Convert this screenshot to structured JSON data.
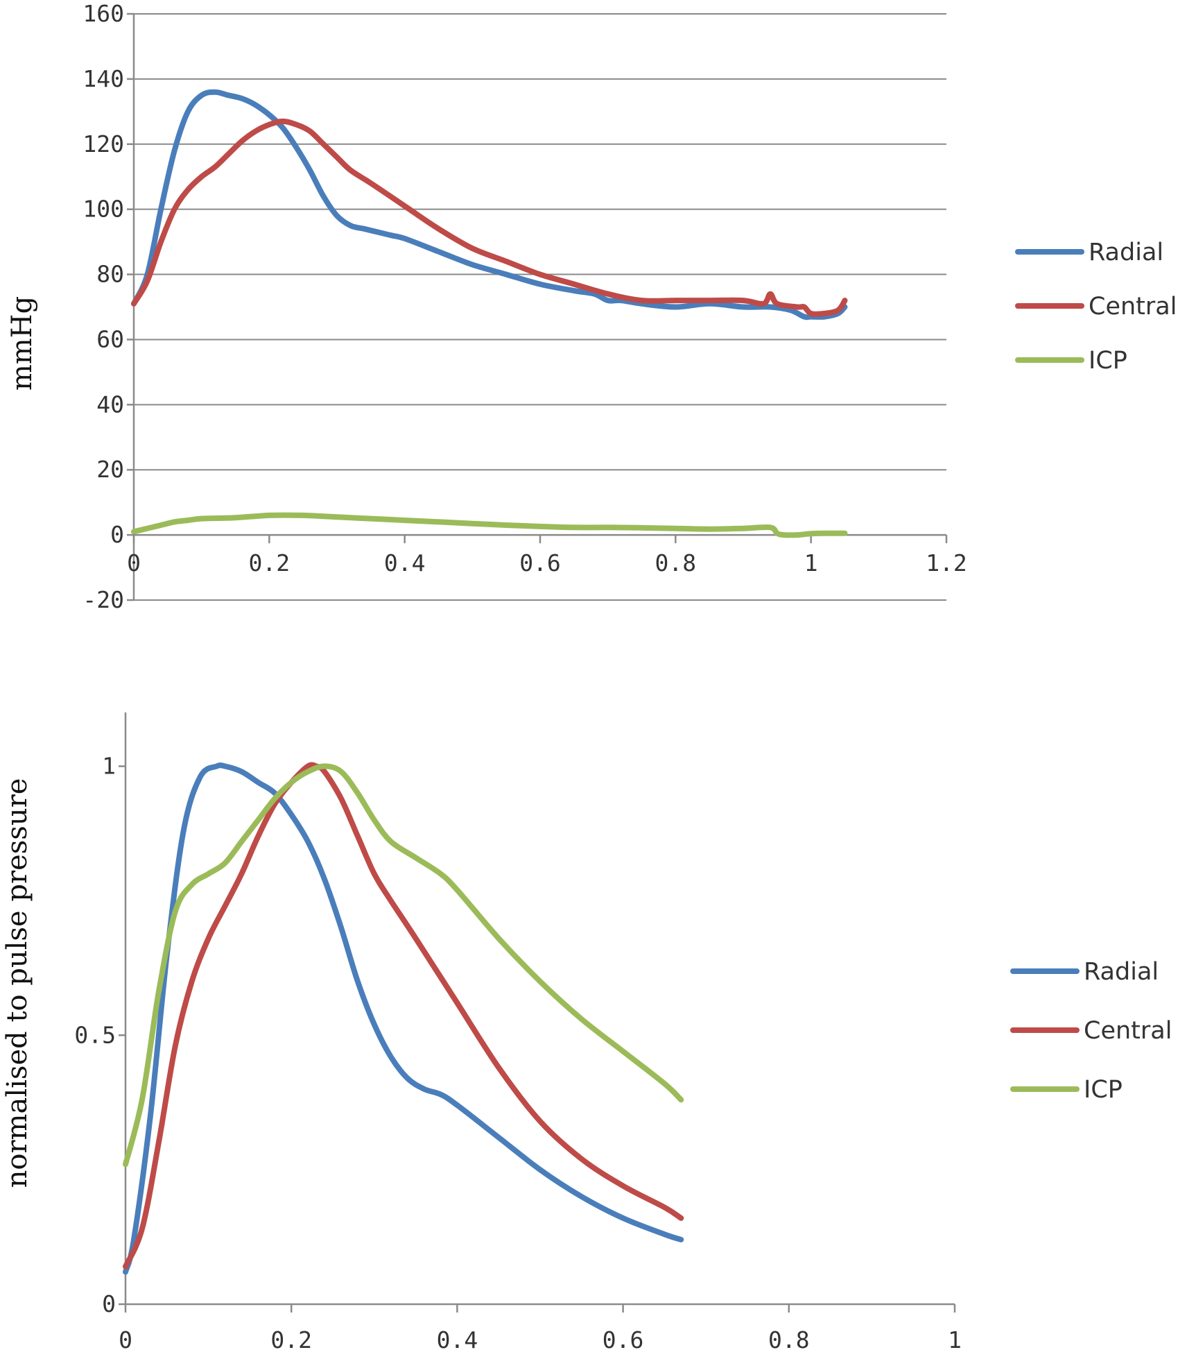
{
  "chart_data": [
    {
      "type": "line",
      "ylabel": "mmHg",
      "xlabel": "",
      "xlim": [
        0,
        1.2
      ],
      "ylim": [
        -20,
        160
      ],
      "xticks": [
        "0",
        "0.2",
        "0.4",
        "0.6",
        "0.8",
        "1",
        "1.2"
      ],
      "yticks": [
        "-20",
        "0",
        "20",
        "40",
        "60",
        "80",
        "100",
        "120",
        "140",
        "160"
      ],
      "grid": true,
      "legend_position": "right",
      "series": [
        {
          "name": "Radial",
          "color": "#4a7ebb",
          "x": [
            0,
            0.02,
            0.04,
            0.06,
            0.08,
            0.1,
            0.12,
            0.14,
            0.16,
            0.18,
            0.2,
            0.22,
            0.24,
            0.26,
            0.28,
            0.3,
            0.32,
            0.34,
            0.36,
            0.38,
            0.4,
            0.45,
            0.5,
            0.55,
            0.6,
            0.65,
            0.68,
            0.7,
            0.72,
            0.75,
            0.8,
            0.85,
            0.9,
            0.94,
            0.97,
            0.99,
            1.0,
            1.02,
            1.04,
            1.05
          ],
          "y": [
            71,
            80,
            100,
            118,
            130,
            135,
            136,
            135,
            134,
            132,
            129,
            125,
            119,
            112,
            104,
            98,
            95,
            94,
            93,
            92,
            91,
            87,
            83,
            80,
            77,
            75,
            74,
            72,
            72,
            71,
            70,
            71,
            70,
            70,
            69,
            67,
            67,
            67,
            68,
            70
          ]
        },
        {
          "name": "Central",
          "color": "#be4b48",
          "x": [
            0,
            0.02,
            0.04,
            0.06,
            0.08,
            0.1,
            0.12,
            0.14,
            0.16,
            0.18,
            0.2,
            0.22,
            0.24,
            0.26,
            0.28,
            0.3,
            0.32,
            0.35,
            0.4,
            0.45,
            0.5,
            0.55,
            0.6,
            0.65,
            0.7,
            0.75,
            0.8,
            0.85,
            0.9,
            0.93,
            0.94,
            0.95,
            0.98,
            0.99,
            1.0,
            1.02,
            1.04,
            1.05
          ],
          "y": [
            71,
            78,
            90,
            100,
            106,
            110,
            113,
            117,
            121,
            124,
            126,
            127,
            126,
            124,
            120,
            116,
            112,
            108,
            101,
            94,
            88,
            84,
            80,
            77,
            74,
            72,
            72,
            72,
            72,
            71,
            74,
            71,
            70,
            70,
            68,
            68,
            69,
            72
          ]
        },
        {
          "name": "ICP",
          "color": "#9bbb59",
          "x": [
            0,
            0.02,
            0.04,
            0.06,
            0.08,
            0.1,
            0.15,
            0.2,
            0.25,
            0.3,
            0.35,
            0.4,
            0.45,
            0.5,
            0.55,
            0.6,
            0.65,
            0.7,
            0.75,
            0.8,
            0.85,
            0.9,
            0.94,
            0.95,
            0.96,
            0.98,
            0.99,
            1.0,
            1.02,
            1.05
          ],
          "y": [
            1,
            2,
            3,
            4,
            4.5,
            5,
            5.3,
            6,
            6,
            5.5,
            5,
            4.5,
            4,
            3.5,
            3,
            2.6,
            2.3,
            2.3,
            2.2,
            2,
            1.8,
            2,
            2.3,
            0.5,
            0,
            0,
            0.2,
            0.4,
            0.5,
            0.5
          ]
        }
      ]
    },
    {
      "type": "line",
      "ylabel": "normalised to pulse pressure",
      "xlabel": "",
      "xlim": [
        0,
        1
      ],
      "ylim": [
        0,
        1.1
      ],
      "xticks": [
        "0",
        "0.2",
        "0.4",
        "0.6",
        "0.8",
        "1"
      ],
      "yticks": [
        "0",
        "0.5",
        "1"
      ],
      "grid": false,
      "legend_position": "right",
      "series": [
        {
          "name": "Radial",
          "color": "#4a7ebb",
          "x": [
            0,
            0.01,
            0.03,
            0.05,
            0.07,
            0.09,
            0.11,
            0.12,
            0.14,
            0.16,
            0.18,
            0.2,
            0.22,
            0.24,
            0.26,
            0.28,
            0.3,
            0.32,
            0.34,
            0.36,
            0.38,
            0.4,
            0.45,
            0.5,
            0.55,
            0.6,
            0.65,
            0.67
          ],
          "y": [
            0.06,
            0.12,
            0.35,
            0.65,
            0.88,
            0.98,
            1.0,
            1.0,
            0.99,
            0.97,
            0.95,
            0.91,
            0.86,
            0.79,
            0.7,
            0.6,
            0.52,
            0.46,
            0.42,
            0.4,
            0.39,
            0.37,
            0.31,
            0.25,
            0.2,
            0.16,
            0.13,
            0.12
          ]
        },
        {
          "name": "Central",
          "color": "#be4b48",
          "x": [
            0,
            0.02,
            0.04,
            0.06,
            0.08,
            0.1,
            0.12,
            0.14,
            0.16,
            0.18,
            0.2,
            0.22,
            0.23,
            0.24,
            0.26,
            0.28,
            0.3,
            0.32,
            0.35,
            0.4,
            0.45,
            0.5,
            0.55,
            0.6,
            0.65,
            0.67
          ],
          "y": [
            0.07,
            0.14,
            0.3,
            0.48,
            0.6,
            0.68,
            0.74,
            0.8,
            0.87,
            0.93,
            0.97,
            1.0,
            1.0,
            0.99,
            0.94,
            0.87,
            0.8,
            0.75,
            0.68,
            0.56,
            0.44,
            0.34,
            0.27,
            0.22,
            0.18,
            0.16
          ]
        },
        {
          "name": "ICP",
          "color": "#9bbb59",
          "x": [
            0,
            0.02,
            0.04,
            0.06,
            0.08,
            0.1,
            0.12,
            0.14,
            0.16,
            0.18,
            0.2,
            0.22,
            0.24,
            0.26,
            0.28,
            0.3,
            0.32,
            0.35,
            0.38,
            0.4,
            0.45,
            0.5,
            0.55,
            0.6,
            0.65,
            0.67
          ],
          "y": [
            0.26,
            0.38,
            0.58,
            0.73,
            0.78,
            0.8,
            0.82,
            0.86,
            0.9,
            0.94,
            0.97,
            0.99,
            1.0,
            0.99,
            0.95,
            0.9,
            0.86,
            0.83,
            0.8,
            0.77,
            0.68,
            0.6,
            0.53,
            0.47,
            0.41,
            0.38
          ]
        }
      ]
    }
  ]
}
